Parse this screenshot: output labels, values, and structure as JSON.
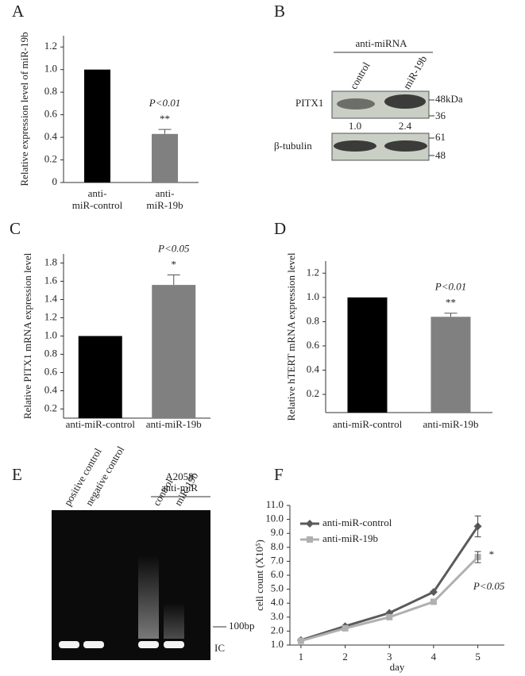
{
  "chart_data": [
    {
      "panel": "A",
      "type": "bar",
      "y_label": "Relative expression level of miR-19b",
      "categories": [
        [
          "anti-",
          "miR-control"
        ],
        [
          "anti-",
          "miR-19b"
        ]
      ],
      "values": [
        1.0,
        0.43
      ],
      "errors": [
        null,
        0.04
      ],
      "colors": [
        "#000000",
        "#808080"
      ],
      "ylim": [
        0,
        1.3
      ],
      "yticks": [
        0,
        0.2,
        0.4,
        0.6,
        0.8,
        {
          "value": 1,
          "label": "1.0"
        },
        1.2
      ],
      "annotations": [
        "P<0.01",
        "**"
      ]
    },
    {
      "panel": "C",
      "type": "bar",
      "y_label": "Relative PITX1 mRNA expression level",
      "categories": [
        "anti-miR-control",
        "anti-miR-19b"
      ],
      "values": [
        1.0,
        1.56
      ],
      "errors": [
        null,
        0.11
      ],
      "colors": [
        "#000000",
        "#808080"
      ],
      "ylim": [
        0.1,
        1.9
      ],
      "yticks": [
        0.2,
        0.4,
        0.6,
        0.8,
        {
          "value": 1,
          "label": "1.0"
        },
        1.2,
        1.4,
        1.6,
        1.8
      ],
      "annotations": [
        "P<0.05",
        "*"
      ]
    },
    {
      "panel": "D",
      "type": "bar",
      "y_label": "Relative hTERT mRNA expression level",
      "categories": [
        "anti-miR-control",
        "anti-miR-19b"
      ],
      "values": [
        1.0,
        0.84
      ],
      "errors": [
        null,
        0.03
      ],
      "colors": [
        "#000000",
        "#808080"
      ],
      "ylim": [
        0.05,
        1.3
      ],
      "yticks": [
        0.2,
        0.4,
        0.6,
        0.8,
        {
          "value": 1,
          "label": "1.0"
        },
        1.2
      ],
      "annotations": [
        "P<0.01",
        "**"
      ]
    },
    {
      "panel": "F",
      "type": "line",
      "y_label": "cell count (X10⁵)",
      "x_label": "day",
      "x": [
        1,
        2,
        3,
        4,
        5
      ],
      "xlim": [
        0.75,
        5.6
      ],
      "xticks": [
        1,
        2,
        3,
        4,
        5
      ],
      "ylim": [
        1,
        11
      ],
      "yticks": [
        {
          "value": 1,
          "label": "1.0"
        },
        {
          "value": 2,
          "label": "2.0"
        },
        {
          "value": 3,
          "label": "3.0"
        },
        {
          "value": 4,
          "label": "4.0"
        },
        {
          "value": 5,
          "label": "5.0"
        },
        {
          "value": 6,
          "label": "6.0"
        },
        {
          "value": 7,
          "label": "7.0"
        },
        {
          "value": 8,
          "label": "8.0"
        },
        {
          "value": 9,
          "label": "9.0"
        },
        {
          "value": 10,
          "label": "10.0"
        },
        {
          "value": 11,
          "label": "11.0"
        }
      ],
      "series": [
        {
          "name": "anti-miR-control",
          "color": "#5a5a5a",
          "values": [
            1.35,
            2.35,
            3.3,
            4.8,
            9.5
          ],
          "errors": [
            null,
            null,
            null,
            null,
            0.75
          ]
        },
        {
          "name": "anti-miR-19b",
          "color": "#b0b0b0",
          "values": [
            1.3,
            2.2,
            3.0,
            4.1,
            7.3
          ],
          "errors": [
            null,
            null,
            null,
            null,
            0.4
          ]
        }
      ],
      "annotations": [
        "*",
        "P<0.05"
      ]
    }
  ],
  "panels": {
    "B": {
      "panel": "B",
      "group": "anti-miRNA",
      "lanes": [
        "control",
        "miR-19b"
      ],
      "rows": [
        "PITX1",
        "β-tubulin"
      ],
      "quantification": [
        "1.0",
        "2.4"
      ],
      "markers_top": [
        "48kDa",
        "36"
      ],
      "markers_bottom": [
        "61",
        "48"
      ]
    },
    "E": {
      "panel": "E",
      "lanes": [
        "positive control",
        "negative control",
        "control",
        "miR-19b"
      ],
      "group": [
        "A2058",
        "anti-miR"
      ],
      "size_marker": "100bp",
      "band": "IC"
    }
  }
}
